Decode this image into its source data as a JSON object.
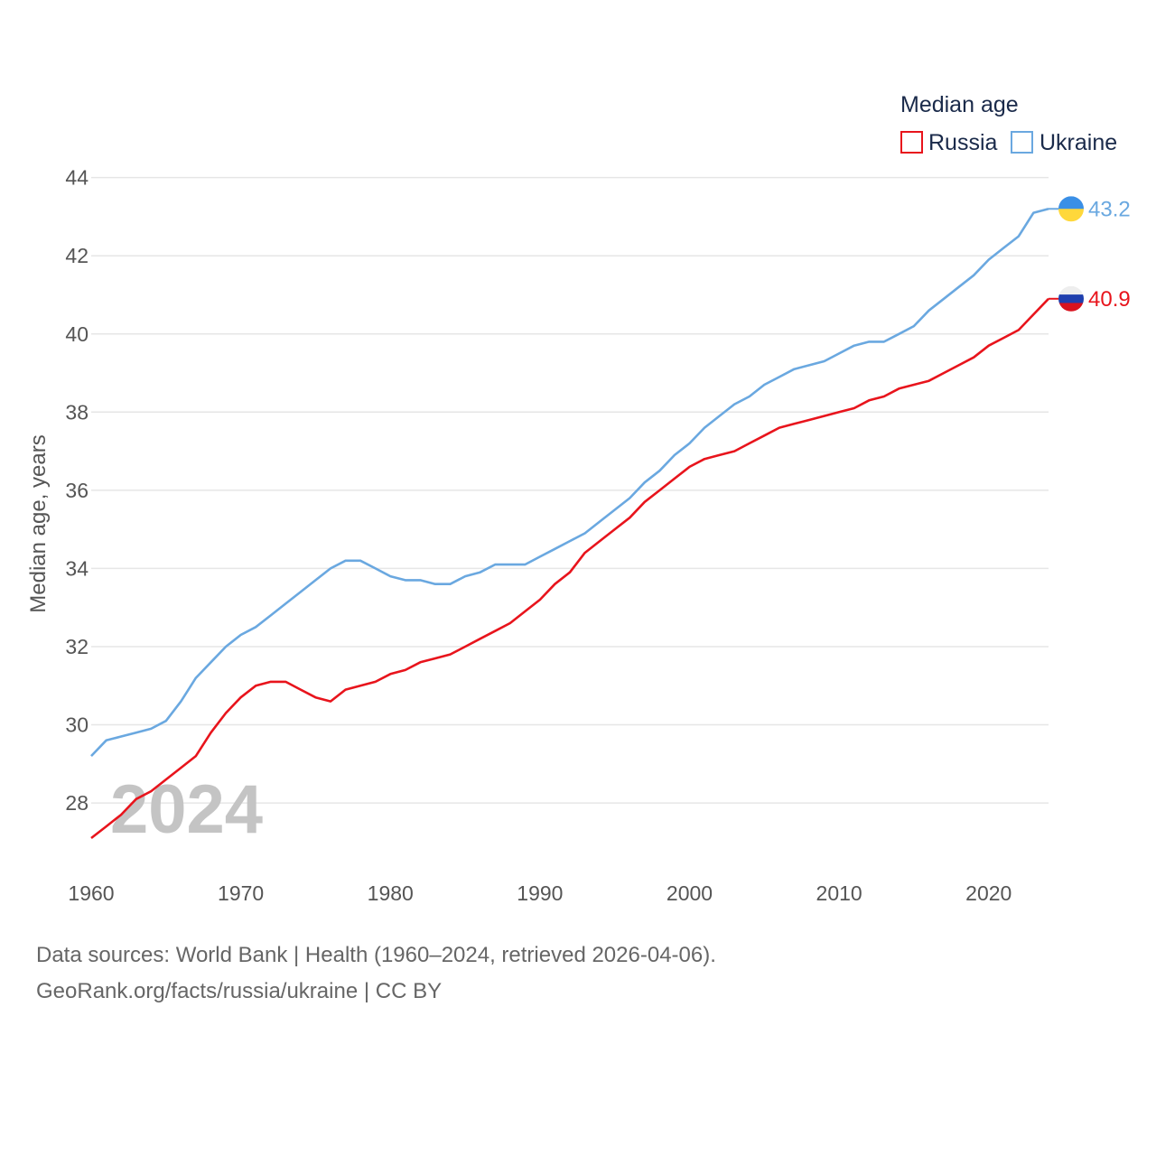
{
  "chart_data": {
    "type": "line",
    "ylabel": "Median age, years",
    "xlabel": "",
    "xlim": [
      1960,
      2024
    ],
    "ylim": [
      26.5,
      44.5
    ],
    "yticks": [
      28,
      30,
      32,
      34,
      36,
      38,
      40,
      42,
      44
    ],
    "xticks": [
      1960,
      1970,
      1980,
      1990,
      2000,
      2010,
      2020
    ],
    "legend_title": "Median age",
    "legend_position": "top-right",
    "highlight_year": "2024",
    "series": [
      {
        "name": "Russia",
        "color": "#e8141c",
        "flag": "russia-flag",
        "end_label": "40.9",
        "x": [
          1960,
          1961,
          1962,
          1963,
          1964,
          1965,
          1966,
          1967,
          1968,
          1969,
          1970,
          1971,
          1972,
          1973,
          1974,
          1975,
          1976,
          1977,
          1978,
          1979,
          1980,
          1981,
          1982,
          1983,
          1984,
          1985,
          1986,
          1987,
          1988,
          1989,
          1990,
          1991,
          1992,
          1993,
          1994,
          1995,
          1996,
          1997,
          1998,
          1999,
          2000,
          2001,
          2002,
          2003,
          2004,
          2005,
          2006,
          2007,
          2008,
          2009,
          2010,
          2011,
          2012,
          2013,
          2014,
          2015,
          2016,
          2017,
          2018,
          2019,
          2020,
          2021,
          2022,
          2023,
          2024
        ],
        "y": [
          27.1,
          27.4,
          27.7,
          28.1,
          28.3,
          28.6,
          28.9,
          29.2,
          29.8,
          30.3,
          30.7,
          31.0,
          31.1,
          31.1,
          30.9,
          30.7,
          30.6,
          30.9,
          31.0,
          31.1,
          31.3,
          31.4,
          31.6,
          31.7,
          31.8,
          32.0,
          32.2,
          32.4,
          32.6,
          32.9,
          33.2,
          33.6,
          33.9,
          34.4,
          34.7,
          35.0,
          35.3,
          35.7,
          36.0,
          36.3,
          36.6,
          36.8,
          36.9,
          37.0,
          37.2,
          37.4,
          37.6,
          37.7,
          37.8,
          37.9,
          38.0,
          38.1,
          38.3,
          38.4,
          38.6,
          38.7,
          38.8,
          39.0,
          39.2,
          39.4,
          39.7,
          39.9,
          40.1,
          40.5,
          40.9
        ]
      },
      {
        "name": "Ukraine",
        "color": "#6aa8e0",
        "flag": "ukraine-flag",
        "end_label": "43.2",
        "x": [
          1960,
          1961,
          1962,
          1963,
          1964,
          1965,
          1966,
          1967,
          1968,
          1969,
          1970,
          1971,
          1972,
          1973,
          1974,
          1975,
          1976,
          1977,
          1978,
          1979,
          1980,
          1981,
          1982,
          1983,
          1984,
          1985,
          1986,
          1987,
          1988,
          1989,
          1990,
          1991,
          1992,
          1993,
          1994,
          1995,
          1996,
          1997,
          1998,
          1999,
          2000,
          2001,
          2002,
          2003,
          2004,
          2005,
          2006,
          2007,
          2008,
          2009,
          2010,
          2011,
          2012,
          2013,
          2014,
          2015,
          2016,
          2017,
          2018,
          2019,
          2020,
          2021,
          2022,
          2023,
          2024
        ],
        "y": [
          29.2,
          29.6,
          29.7,
          29.8,
          29.9,
          30.1,
          30.6,
          31.2,
          31.6,
          32.0,
          32.3,
          32.5,
          32.8,
          33.1,
          33.4,
          33.7,
          34.0,
          34.2,
          34.2,
          34.0,
          33.8,
          33.7,
          33.7,
          33.6,
          33.6,
          33.8,
          33.9,
          34.1,
          34.1,
          34.1,
          34.3,
          34.5,
          34.7,
          34.9,
          35.2,
          35.5,
          35.8,
          36.2,
          36.5,
          36.9,
          37.2,
          37.6,
          37.9,
          38.2,
          38.4,
          38.7,
          38.9,
          39.1,
          39.2,
          39.3,
          39.5,
          39.7,
          39.8,
          39.8,
          40.0,
          40.2,
          40.6,
          40.9,
          41.2,
          41.5,
          41.9,
          42.2,
          42.5,
          43.1,
          43.2
        ]
      }
    ]
  },
  "footer": {
    "sources": "Data sources: World Bank | Health (1960–2024, retrieved 2026-04-06).",
    "credit": "GeoRank.org/facts/russia/ukraine | CC BY"
  }
}
